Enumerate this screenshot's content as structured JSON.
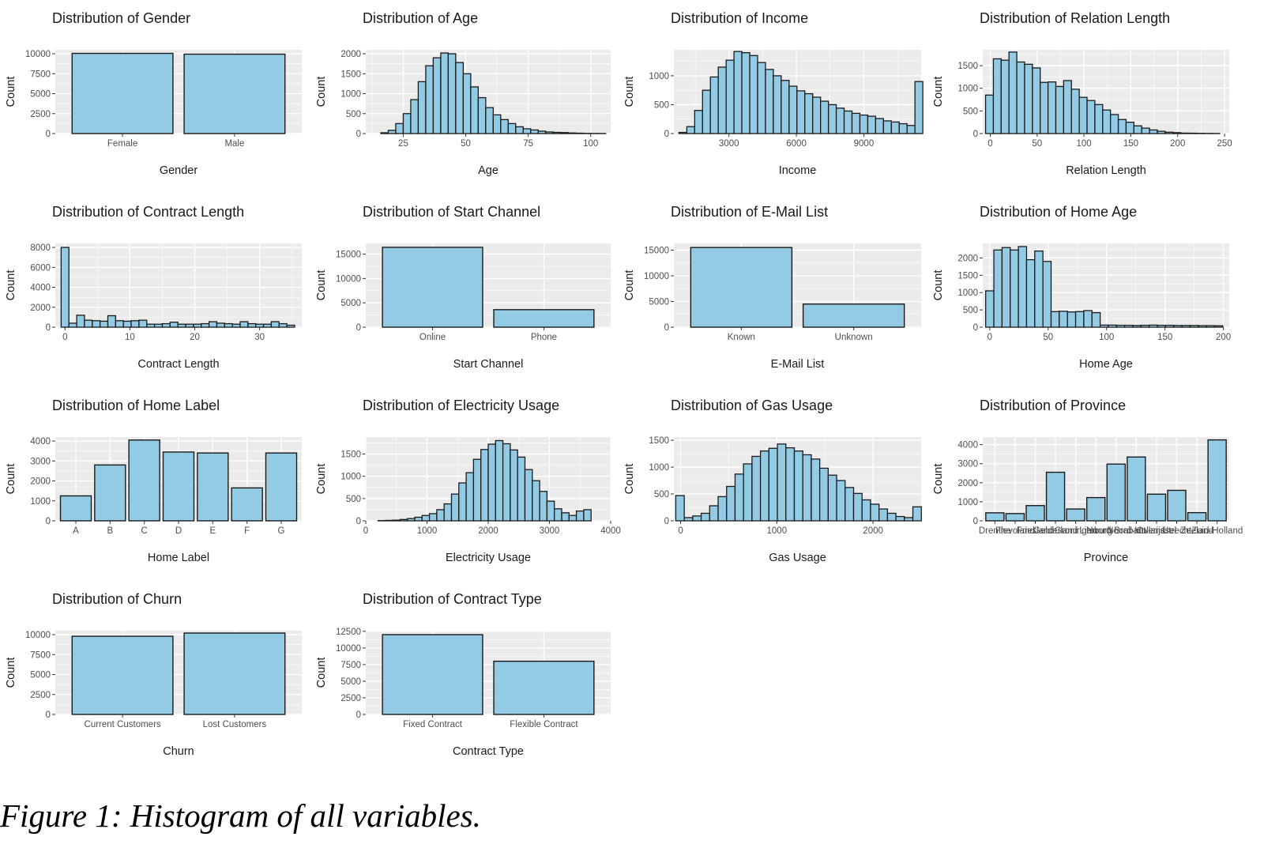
{
  "figure_caption": "Figure 1: Histogram of all variables.",
  "colors": {
    "bar_fill": "#94cbe4",
    "bar_stroke": "#1a1a1a",
    "panel_bg": "#ebebeb",
    "grid": "#ffffff"
  },
  "chart_data": [
    {
      "type": "bar",
      "title": "Distribution of Gender",
      "xlabel": "Gender",
      "ylabel": "Count",
      "categories": [
        "Female",
        "Male"
      ],
      "values": [
        10050,
        9950
      ],
      "ylim": [
        0,
        10500
      ],
      "yticks": [
        0,
        2500,
        5000,
        7500,
        10000
      ],
      "ytick_labels": [
        "0",
        "2500",
        "5000",
        "7500",
        "10000"
      ]
    },
    {
      "type": "histogram",
      "title": "Distribution of Age",
      "xlabel": "Age",
      "ylabel": "Count",
      "bins": {
        "start": 16,
        "width": 3,
        "values": [
          20,
          80,
          250,
          500,
          850,
          1300,
          1700,
          1900,
          2020,
          2000,
          1780,
          1500,
          1170,
          900,
          650,
          470,
          350,
          250,
          170,
          120,
          90,
          60,
          40,
          30,
          25,
          15,
          10,
          5,
          3,
          2
        ]
      },
      "xlim": [
        10,
        108
      ],
      "xticks": [
        25,
        50,
        75,
        100
      ],
      "ylim": [
        0,
        2100
      ],
      "yticks": [
        0,
        500,
        1000,
        1500,
        2000
      ],
      "ytick_labels": [
        "0",
        "500",
        "1000",
        "1500",
        "2000"
      ]
    },
    {
      "type": "histogram",
      "title": "Distribution of Income",
      "xlabel": "Income",
      "ylabel": "Count",
      "bins": {
        "start": 775,
        "width": 350,
        "values": [
          20,
          120,
          400,
          750,
          980,
          1150,
          1270,
          1420,
          1400,
          1350,
          1230,
          1110,
          1000,
          920,
          820,
          740,
          690,
          630,
          560,
          500,
          440,
          390,
          350,
          320,
          300,
          260,
          220,
          200,
          170,
          140,
          900
        ]
      },
      "xlim": [
        550,
        11550
      ],
      "xticks": [
        3000,
        6000,
        9000
      ],
      "ylim": [
        0,
        1450
      ],
      "yticks": [
        0,
        500,
        1000
      ],
      "ytick_labels": [
        "0",
        "500",
        "1000"
      ]
    },
    {
      "type": "histogram",
      "title": "Distribution of Relation Length",
      "xlabel": "Relation Length",
      "ylabel": "Count",
      "bins": {
        "start": -5,
        "width": 8.33,
        "values": [
          850,
          1650,
          1620,
          1800,
          1580,
          1530,
          1450,
          1130,
          1140,
          1040,
          1170,
          980,
          800,
          730,
          640,
          520,
          420,
          310,
          250,
          170,
          120,
          80,
          50,
          30,
          20,
          10,
          8,
          5,
          3,
          2
        ]
      },
      "xlim": [
        -8,
        255
      ],
      "xticks": [
        0,
        50,
        100,
        150,
        200,
        250
      ],
      "ylim": [
        0,
        1850
      ],
      "yticks": [
        0,
        500,
        1000,
        1500
      ],
      "ytick_labels": [
        "0",
        "500",
        "1000",
        "1500"
      ]
    },
    {
      "type": "histogram",
      "title": "Distribution of Contract Length",
      "xlabel": "Contract Length",
      "ylabel": "Count",
      "bins": {
        "start": -0.6,
        "width": 1.2,
        "values": [
          8000,
          400,
          1200,
          700,
          650,
          600,
          1150,
          650,
          600,
          650,
          700,
          300,
          300,
          350,
          500,
          300,
          300,
          300,
          350,
          550,
          400,
          350,
          300,
          550,
          350,
          300,
          300,
          550,
          350,
          200
        ]
      },
      "xlim": [
        -1.5,
        36.5
      ],
      "xticks": [
        0,
        10,
        20,
        30
      ],
      "ylim": [
        0,
        8400
      ],
      "yticks": [
        0,
        2000,
        4000,
        6000,
        8000
      ],
      "ytick_labels": [
        "0",
        "2000",
        "4000",
        "6000",
        "8000"
      ]
    },
    {
      "type": "bar",
      "title": "Distribution of Start Channel",
      "xlabel": "Start Channel",
      "ylabel": "Count",
      "categories": [
        "Online",
        "Phone"
      ],
      "values": [
        16400,
        3600
      ],
      "ylim": [
        0,
        17200
      ],
      "yticks": [
        0,
        5000,
        10000,
        15000
      ],
      "ytick_labels": [
        "0",
        "5000",
        "10000",
        "15000"
      ]
    },
    {
      "type": "bar",
      "title": "Distribution of E-Mail List",
      "xlabel": "E-Mail List",
      "ylabel": "Count",
      "categories": [
        "Known",
        "Unknown"
      ],
      "values": [
        15500,
        4500
      ],
      "ylim": [
        0,
        16300
      ],
      "yticks": [
        0,
        5000,
        10000,
        15000
      ],
      "ytick_labels": [
        "0",
        "5000",
        "10000",
        "15000"
      ]
    },
    {
      "type": "histogram",
      "title": "Distribution of Home Age",
      "xlabel": "Home Age",
      "ylabel": "Count",
      "bins": {
        "start": -3.5,
        "width": 7,
        "values": [
          1050,
          2230,
          2300,
          2230,
          2330,
          1950,
          2200,
          1900,
          450,
          460,
          440,
          450,
          480,
          420,
          60,
          60,
          55,
          55,
          50,
          55,
          60,
          55,
          55,
          50,
          50,
          50,
          45,
          45,
          40
        ]
      },
      "xlim": [
        -6,
        205
      ],
      "xticks": [
        0,
        50,
        100,
        150,
        200
      ],
      "ylim": [
        0,
        2420
      ],
      "yticks": [
        0,
        500,
        1000,
        1500,
        2000
      ],
      "ytick_labels": [
        "0",
        "500",
        "1000",
        "1500",
        "2000"
      ]
    },
    {
      "type": "bar",
      "title": "Distribution of Home Label",
      "xlabel": "Home Label",
      "ylabel": "Count",
      "categories": [
        "A",
        "B",
        "C",
        "D",
        "E",
        "F",
        "G"
      ],
      "values": [
        1250,
        2800,
        4050,
        3450,
        3400,
        1650,
        3400
      ],
      "ylim": [
        0,
        4200
      ],
      "yticks": [
        0,
        1000,
        2000,
        3000,
        4000
      ],
      "ytick_labels": [
        "0",
        "1000",
        "2000",
        "3000",
        "4000"
      ]
    },
    {
      "type": "histogram",
      "title": "Distribution of Electricity Usage",
      "xlabel": "Electricity Usage",
      "ylabel": "Count",
      "bins": {
        "start": 200,
        "width": 120,
        "values": [
          5,
          10,
          15,
          30,
          50,
          80,
          120,
          160,
          250,
          380,
          600,
          850,
          1080,
          1380,
          1600,
          1720,
          1800,
          1730,
          1590,
          1430,
          1150,
          900,
          660,
          440,
          270,
          180,
          120,
          220,
          250
        ]
      },
      "xlim": [
        0,
        4000
      ],
      "xticks": [
        0,
        1000,
        2000,
        3000,
        4000
      ],
      "xtick_labels": [
        "0",
        "1000",
        "2000",
        "3000",
        "4000"
      ],
      "ylim": [
        0,
        1880
      ],
      "yticks": [
        0,
        500,
        1000,
        1500
      ],
      "ytick_labels": [
        "0",
        "500",
        "1000",
        "1500"
      ]
    },
    {
      "type": "histogram",
      "title": "Distribution of Gas Usage",
      "xlabel": "Gas Usage",
      "ylabel": "Count",
      "bins": {
        "start": -50,
        "width": 88,
        "values": [
          470,
          60,
          90,
          140,
          280,
          450,
          640,
          870,
          1060,
          1200,
          1300,
          1350,
          1430,
          1360,
          1300,
          1230,
          1150,
          980,
          850,
          750,
          620,
          510,
          390,
          310,
          220,
          140,
          80,
          60,
          260
        ]
      },
      "xlim": [
        -70,
        2500
      ],
      "xticks": [
        0,
        1000,
        2000
      ],
      "ylim": [
        0,
        1560
      ],
      "yticks": [
        0,
        500,
        1000,
        1500
      ],
      "ytick_labels": [
        "0",
        "500",
        "1000",
        "1500"
      ]
    },
    {
      "type": "bar",
      "title": "Distribution of Province",
      "xlabel": "Province",
      "ylabel": "Count",
      "categories": [
        "Drenthe",
        "Flevoland",
        "Friesland",
        "Gelderland",
        "Groningen",
        "Limburg",
        "Noord-Brabant",
        "Noord-Holland",
        "Overijssel",
        "Utrecht",
        "Zeeland",
        "Zuid-Holland"
      ],
      "values": [
        420,
        380,
        800,
        2550,
        620,
        1220,
        2980,
        3350,
        1400,
        1600,
        430,
        4250
      ],
      "ylim": [
        0,
        4400
      ],
      "yticks": [
        0,
        1000,
        2000,
        3000,
        4000
      ],
      "ytick_labels": [
        "0",
        "1000",
        "2000",
        "3000",
        "4000"
      ]
    },
    {
      "type": "bar",
      "title": "Distribution of Churn",
      "xlabel": "Churn",
      "ylabel": "Count",
      "categories": [
        "Current Customers",
        "Lost Customers"
      ],
      "values": [
        9800,
        10200
      ],
      "ylim": [
        0,
        10500
      ],
      "yticks": [
        0,
        2500,
        5000,
        7500,
        10000
      ],
      "ytick_labels": [
        "0",
        "2500",
        "5000",
        "7500",
        "10000"
      ]
    },
    {
      "type": "bar",
      "title": "Distribution of Contract Type",
      "xlabel": "Contract Type",
      "ylabel": "Count",
      "categories": [
        "Fixed Contract",
        "Flexible Contract"
      ],
      "values": [
        12000,
        8000
      ],
      "ylim": [
        0,
        12600
      ],
      "yticks": [
        0,
        2500,
        5000,
        7500,
        10000,
        12500
      ],
      "ytick_labels": [
        "0",
        "2500",
        "5000",
        "7500",
        "10000",
        "12500"
      ]
    }
  ]
}
